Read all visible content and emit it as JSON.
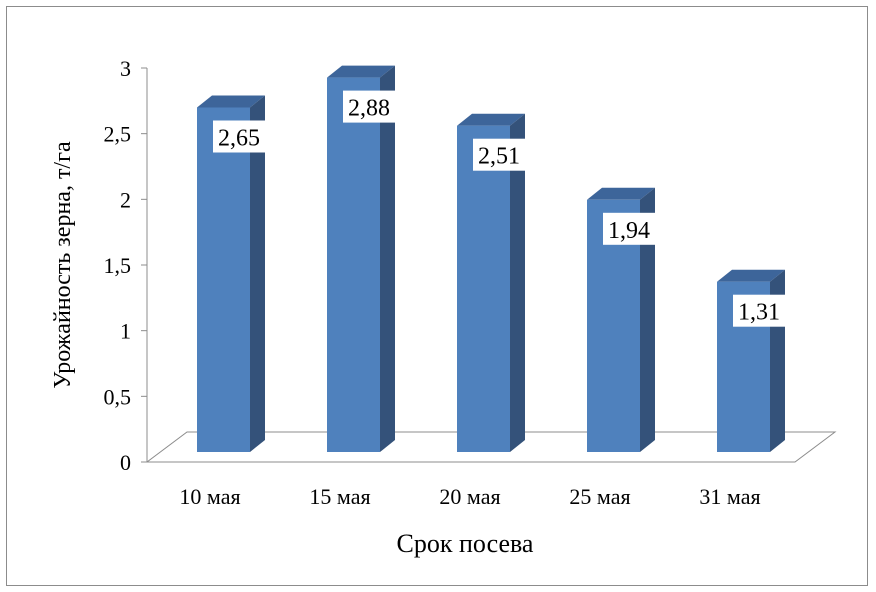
{
  "chart_data": {
    "type": "bar",
    "title": "",
    "categories": [
      "10 мая",
      "15 мая",
      "20 мая",
      "25 мая",
      "31 мая"
    ],
    "values": [
      2.65,
      2.88,
      2.51,
      1.94,
      1.31
    ],
    "data_labels": [
      "2,65",
      "2,88",
      "2,51",
      "1,94",
      "1,31"
    ],
    "xlabel": "Срок посева",
    "ylabel": "Урожайность зерна, т/га",
    "ylim": [
      0,
      3
    ],
    "yticks": [
      "0",
      "0,5",
      "1",
      "1,5",
      "2",
      "2,5",
      "3"
    ],
    "grid": false,
    "legend": "none",
    "colors": {
      "front": "#4f81bd",
      "side": "#34527a",
      "top": "#3d659a",
      "floor": "#ffffff"
    }
  }
}
